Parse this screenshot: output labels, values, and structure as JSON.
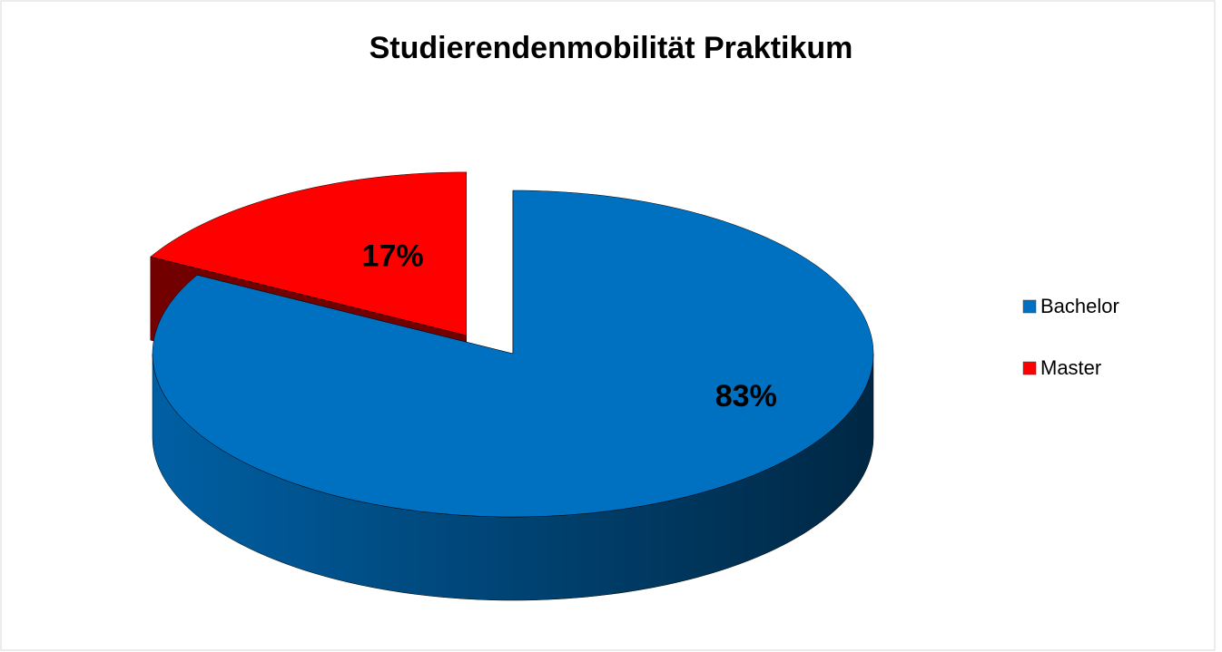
{
  "chart_data": {
    "type": "pie",
    "title": "Studierendenmobilität Praktikum",
    "categories": [
      "Bachelor",
      "Master"
    ],
    "values": [
      83,
      17
    ],
    "value_labels": [
      "83%",
      "17%"
    ],
    "colors": [
      "#0070c0",
      "#ff0000"
    ],
    "legend": "right",
    "exploded": "Master"
  }
}
